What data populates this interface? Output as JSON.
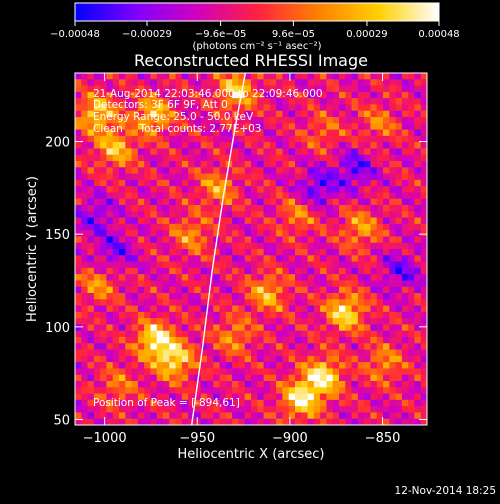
{
  "chart_data": {
    "type": "heatmap",
    "title": "Reconstructed RHESSI Image",
    "xlabel": "Heliocentric X (arcsec)",
    "ylabel": "Heliocentric Y (arcsec)",
    "xlim": [
      -1016,
      -826
    ],
    "ylim": [
      47,
      237
    ],
    "xticks": [
      -1000,
      -950,
      -900,
      -850
    ],
    "yticks": [
      50,
      100,
      150,
      200
    ],
    "xtick_labels": [
      "−1000",
      "−950",
      "−900",
      "−850"
    ],
    "ytick_labels": [
      "50",
      "100",
      "150",
      "200"
    ],
    "colorbar": {
      "min": -0.00048,
      "max": 0.00048,
      "tick_values": [
        -0.00048,
        -0.00029,
        -9.6e-05,
        9.6e-05,
        0.00029,
        0.00048
      ],
      "tick_labels": [
        "−0.00048",
        "−0.00029",
        "−9.6e−05",
        "9.6e−05",
        "0.00029",
        "0.00048"
      ],
      "unit_label": "(photons cm⁻² s⁻¹ asec⁻²)",
      "colormap": [
        "#0000ff",
        "#7f00ff",
        "#d000c0",
        "#ff2040",
        "#ff8000",
        "#ffd000",
        "#ffffff"
      ]
    },
    "peak": {
      "x": -894,
      "y": 61
    },
    "limb_curve": [
      [
        -953,
        47
      ],
      [
        -947,
        90
      ],
      [
        -942,
        130
      ],
      [
        -936,
        170
      ],
      [
        -930,
        205
      ],
      [
        -924,
        237
      ]
    ],
    "annotations": [
      "21-Aug-2014 22:03:46.000 to 22:09:46.000",
      "Detectors: 3F 6F 9F, Att 0",
      "Energy Range: 25.0 - 50.0 keV",
      "Clean     Total counts: 2.77E+03",
      "Position of Peak = [-894,61]"
    ],
    "hotspots": [
      {
        "x": -973,
        "y": 93,
        "v": 1.0
      },
      {
        "x": -962,
        "y": 82,
        "v": 0.9
      },
      {
        "x": -882,
        "y": 73,
        "v": 1.0
      },
      {
        "x": -894,
        "y": 61,
        "v": 1.0
      },
      {
        "x": -870,
        "y": 108,
        "v": 0.95
      },
      {
        "x": -1004,
        "y": 215,
        "v": 0.85
      },
      {
        "x": -994,
        "y": 196,
        "v": 0.75
      },
      {
        "x": -974,
        "y": 214,
        "v": 0.8
      },
      {
        "x": -929,
        "y": 227,
        "v": 0.85
      },
      {
        "x": -912,
        "y": 118,
        "v": 0.7
      },
      {
        "x": -953,
        "y": 150,
        "v": 0.55
      },
      {
        "x": -1003,
        "y": 123,
        "v": 0.55
      },
      {
        "x": -852,
        "y": 210,
        "v": 0.45
      },
      {
        "x": -862,
        "y": 153,
        "v": 0.6
      },
      {
        "x": -939,
        "y": 175,
        "v": 0.6
      },
      {
        "x": -930,
        "y": 95,
        "v": 0.55
      },
      {
        "x": -849,
        "y": 80,
        "v": 0.55
      },
      {
        "x": -993,
        "y": 68,
        "v": 0.45
      },
      {
        "x": -896,
        "y": 160,
        "v": 0.5
      },
      {
        "x": -882,
        "y": 205,
        "v": 0.4
      }
    ],
    "coldspots": [
      {
        "x": -885,
        "y": 175,
        "v": -0.6
      },
      {
        "x": -865,
        "y": 185,
        "v": -0.55
      },
      {
        "x": -995,
        "y": 140,
        "v": -0.5
      },
      {
        "x": -1005,
        "y": 160,
        "v": -0.45
      },
      {
        "x": -840,
        "y": 130,
        "v": -0.5
      }
    ]
  },
  "footer": {
    "timestamp": "12-Nov-2014 18:25"
  },
  "colors": {
    "background": "#000000",
    "text": "#ffffff",
    "limb": "#ffffff"
  }
}
